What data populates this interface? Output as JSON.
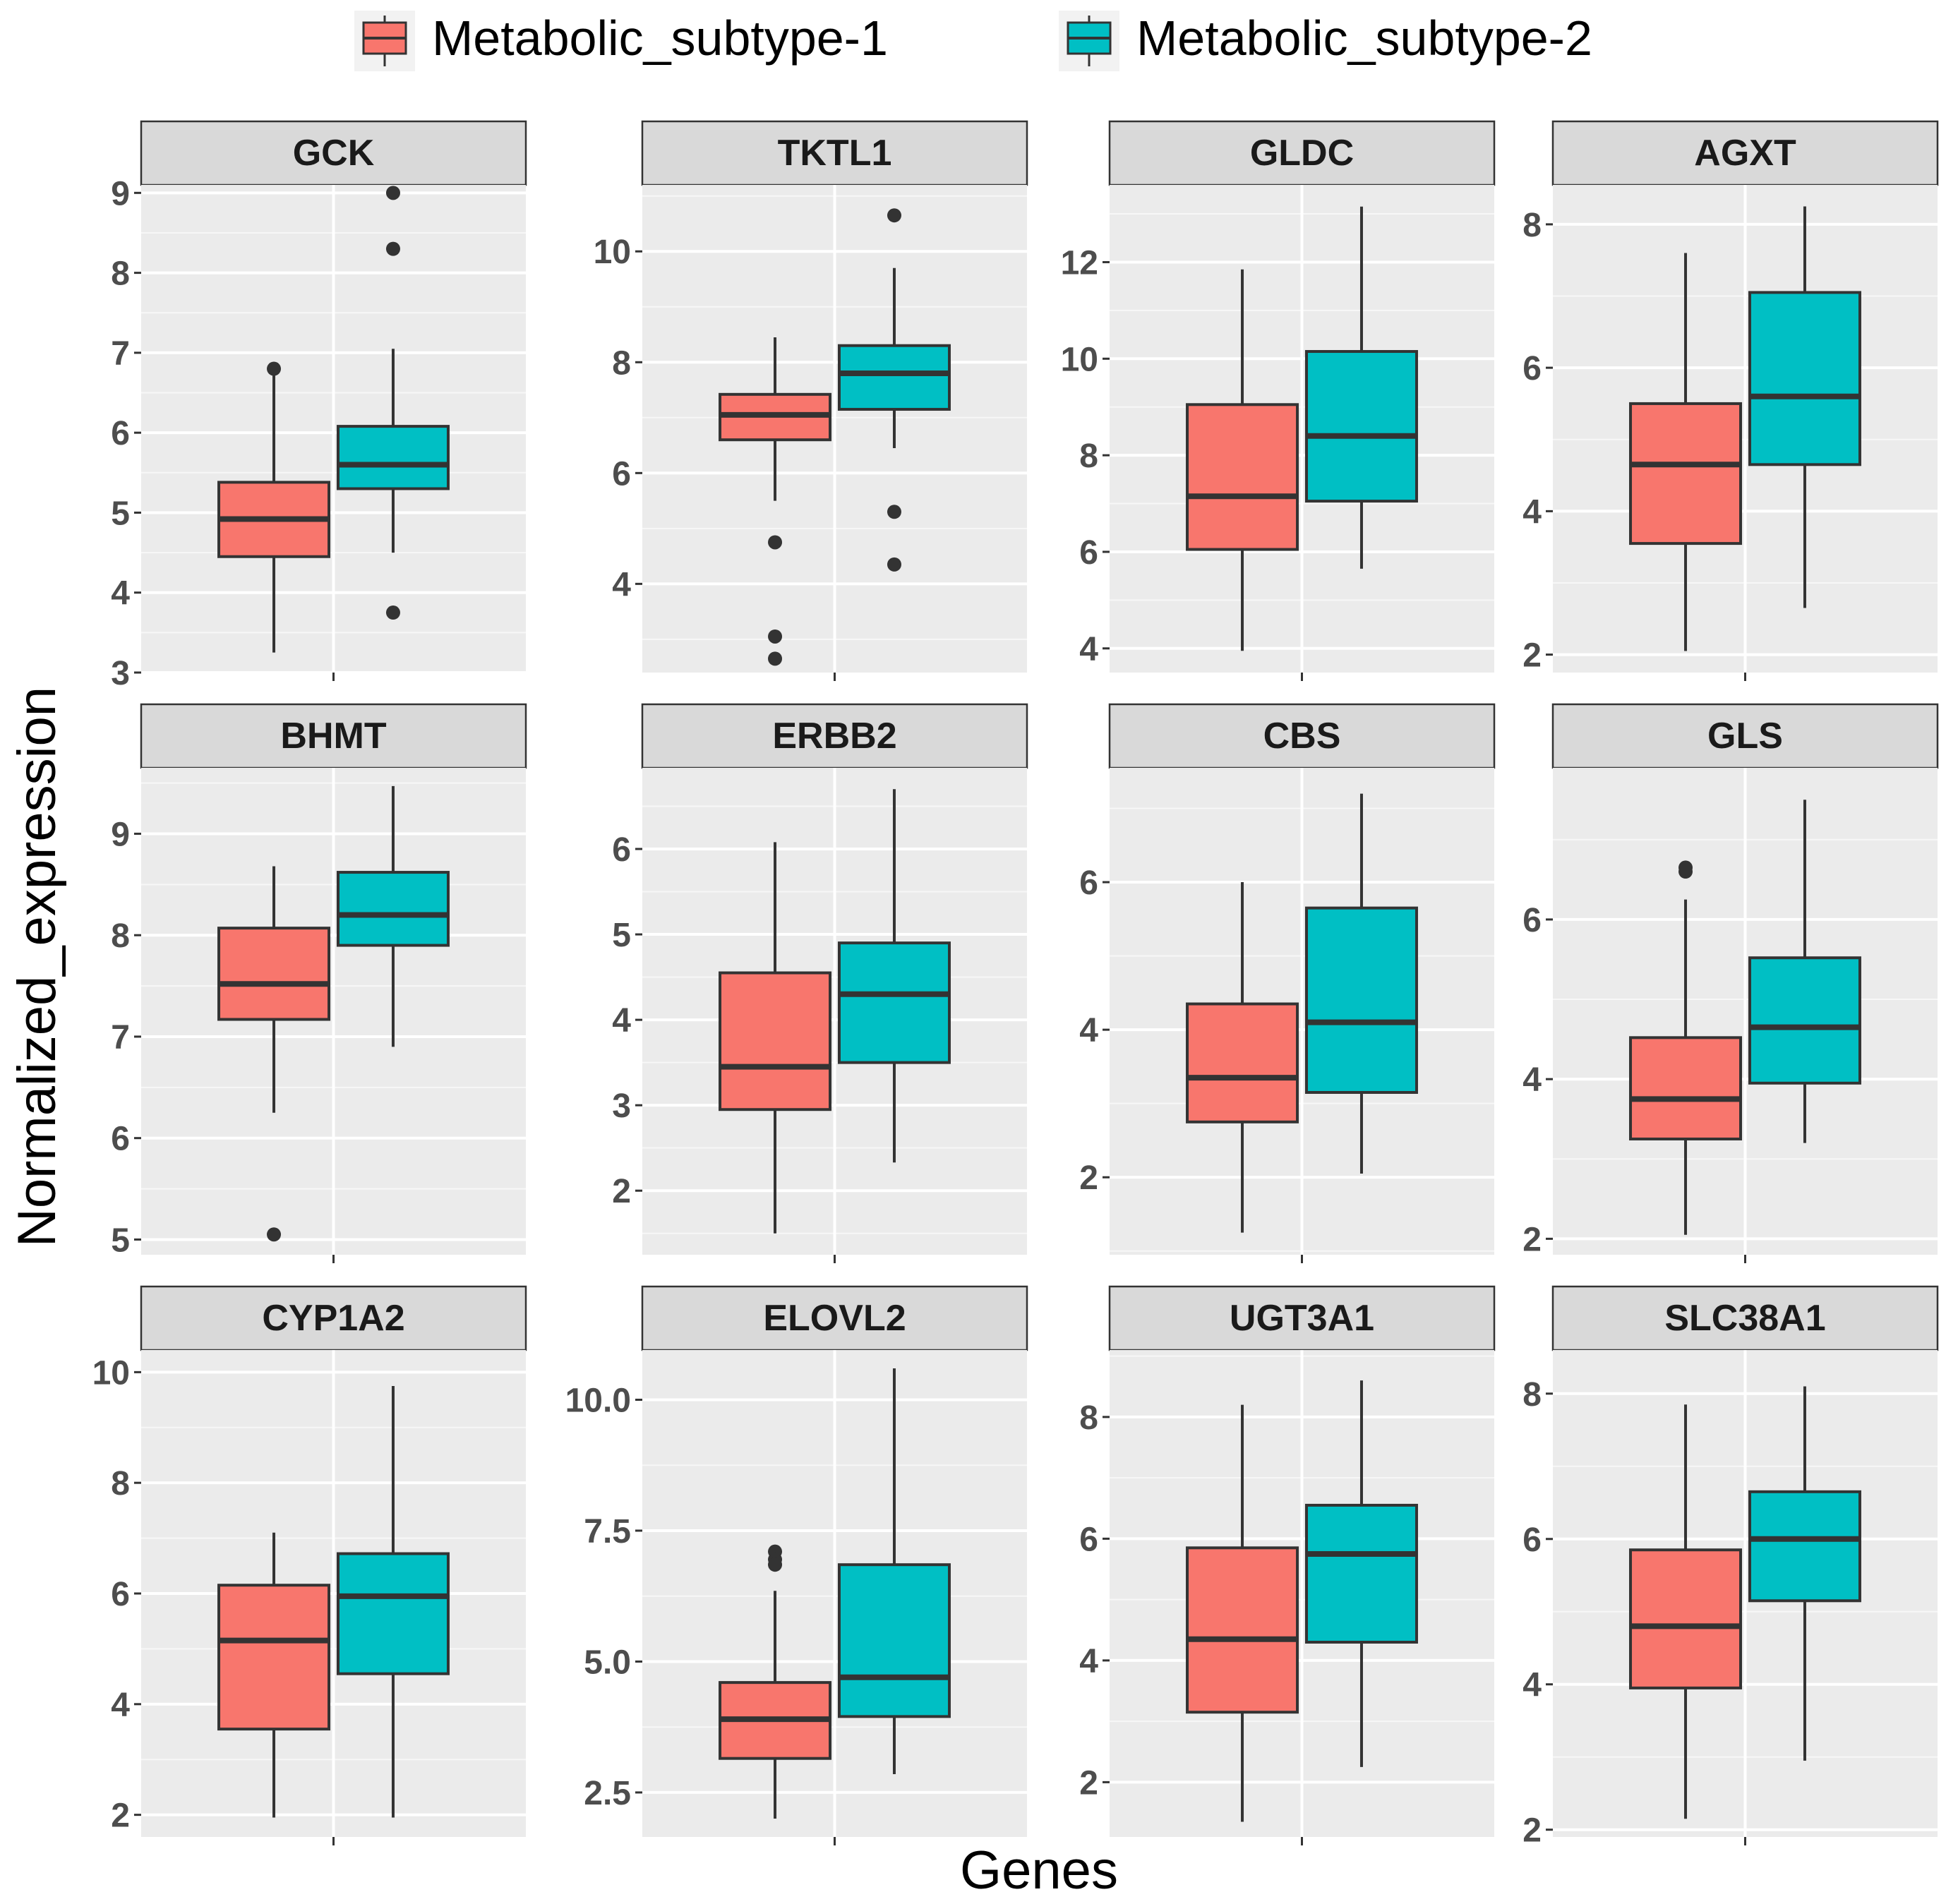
{
  "chart_data": {
    "type": "box",
    "xlabel": "Genes",
    "ylabel": "Normalized_expression",
    "legend": {
      "position": "top",
      "entries": [
        {
          "name": "Metabolic_subtype-1",
          "color": "#F8766D"
        },
        {
          "name": "Metabolic_subtype-2",
          "color": "#00BFC4"
        }
      ]
    },
    "facets": [
      {
        "gene": "GCK",
        "ylim": [
          3,
          9.1
        ],
        "ticks": [
          3,
          4,
          5,
          6,
          7,
          8,
          9
        ],
        "tick_labels": [
          "3",
          "4",
          "5",
          "6",
          "7",
          "8",
          "9"
        ],
        "groups": [
          {
            "q1": 4.45,
            "median": 4.92,
            "q3": 5.38,
            "wlo": 3.25,
            "whi": 6.75,
            "outliers": [
              6.8
            ]
          },
          {
            "q1": 5.3,
            "median": 5.6,
            "q3": 6.08,
            "wlo": 4.5,
            "whi": 7.05,
            "outliers": [
              9.0,
              8.3,
              3.75
            ]
          }
        ]
      },
      {
        "gene": "TKTL1",
        "ylim": [
          2.4,
          11.2
        ],
        "ticks": [
          4,
          6,
          8,
          10
        ],
        "tick_labels": [
          "4",
          "6",
          "8",
          "10"
        ],
        "groups": [
          {
            "q1": 6.6,
            "median": 7.05,
            "q3": 7.42,
            "wlo": 5.5,
            "whi": 8.45,
            "outliers": [
              4.75,
              3.05,
              2.65
            ]
          },
          {
            "q1": 7.15,
            "median": 7.8,
            "q3": 8.3,
            "wlo": 6.45,
            "whi": 9.7,
            "outliers": [
              10.65,
              5.3,
              4.35
            ]
          }
        ]
      },
      {
        "gene": "GLDC",
        "ylim": [
          3.5,
          13.6
        ],
        "ticks": [
          4,
          6,
          8,
          10,
          12
        ],
        "tick_labels": [
          "4",
          "6",
          "8",
          "10",
          "12"
        ],
        "groups": [
          {
            "q1": 6.05,
            "median": 7.15,
            "q3": 9.05,
            "wlo": 3.95,
            "whi": 11.85,
            "outliers": []
          },
          {
            "q1": 7.05,
            "median": 8.4,
            "q3": 10.15,
            "wlo": 5.65,
            "whi": 13.15,
            "outliers": []
          }
        ]
      },
      {
        "gene": "AGXT",
        "ylim": [
          1.75,
          8.55
        ],
        "ticks": [
          2,
          4,
          6,
          8
        ],
        "tick_labels": [
          "2",
          "4",
          "6",
          "8"
        ],
        "groups": [
          {
            "q1": 3.55,
            "median": 4.65,
            "q3": 5.5,
            "wlo": 2.05,
            "whi": 7.6,
            "outliers": []
          },
          {
            "q1": 4.65,
            "median": 5.6,
            "q3": 7.05,
            "wlo": 2.65,
            "whi": 8.25,
            "outliers": []
          }
        ]
      },
      {
        "gene": "BHMT",
        "ylim": [
          4.85,
          9.65
        ],
        "ticks": [
          5,
          6,
          7,
          8,
          9
        ],
        "tick_labels": [
          "5",
          "6",
          "7",
          "8",
          "9"
        ],
        "groups": [
          {
            "q1": 7.17,
            "median": 7.52,
            "q3": 8.07,
            "wlo": 6.25,
            "whi": 8.68,
            "outliers": [
              5.05
            ]
          },
          {
            "q1": 7.9,
            "median": 8.2,
            "q3": 8.62,
            "wlo": 6.9,
            "whi": 9.47,
            "outliers": []
          }
        ]
      },
      {
        "gene": "ERBB2",
        "ylim": [
          1.25,
          6.95
        ],
        "ticks": [
          2,
          3,
          4,
          5,
          6
        ],
        "tick_labels": [
          "2",
          "3",
          "4",
          "5",
          "6"
        ],
        "groups": [
          {
            "q1": 2.95,
            "median": 3.45,
            "q3": 4.55,
            "wlo": 1.5,
            "whi": 6.08,
            "outliers": []
          },
          {
            "q1": 3.5,
            "median": 4.3,
            "q3": 4.9,
            "wlo": 2.33,
            "whi": 6.7,
            "outliers": []
          }
        ]
      },
      {
        "gene": "CBS",
        "ylim": [
          0.95,
          7.55
        ],
        "ticks": [
          2,
          4,
          6
        ],
        "tick_labels": [
          "2",
          "4",
          "6"
        ],
        "groups": [
          {
            "q1": 2.75,
            "median": 3.35,
            "q3": 4.35,
            "wlo": 1.25,
            "whi": 6.0,
            "outliers": []
          },
          {
            "q1": 3.15,
            "median": 4.1,
            "q3": 5.65,
            "wlo": 2.05,
            "whi": 7.2,
            "outliers": []
          }
        ]
      },
      {
        "gene": "GLS",
        "ylim": [
          1.8,
          7.9
        ],
        "ticks": [
          2,
          4,
          6
        ],
        "tick_labels": [
          "2",
          "4",
          "6"
        ],
        "groups": [
          {
            "q1": 3.25,
            "median": 3.75,
            "q3": 4.52,
            "wlo": 2.05,
            "whi": 6.25,
            "outliers": [
              6.6,
              6.65
            ]
          },
          {
            "q1": 3.95,
            "median": 4.65,
            "q3": 5.52,
            "wlo": 3.2,
            "whi": 7.5,
            "outliers": []
          }
        ]
      },
      {
        "gene": "CYP1A2",
        "ylim": [
          1.6,
          10.4
        ],
        "ticks": [
          2,
          4,
          6,
          8,
          10
        ],
        "tick_labels": [
          "2",
          "4",
          "6",
          "8",
          "10"
        ],
        "groups": [
          {
            "q1": 3.55,
            "median": 5.15,
            "q3": 6.15,
            "wlo": 1.95,
            "whi": 7.1,
            "outliers": []
          },
          {
            "q1": 4.55,
            "median": 5.95,
            "q3": 6.72,
            "wlo": 1.95,
            "whi": 9.75,
            "outliers": []
          }
        ]
      },
      {
        "gene": "ELOVL2",
        "ylim": [
          1.65,
          10.95
        ],
        "ticks": [
          2.5,
          5.0,
          7.5,
          10.0
        ],
        "tick_labels": [
          "2.5",
          "5.0",
          "7.5",
          "10.0"
        ],
        "groups": [
          {
            "q1": 3.15,
            "median": 3.9,
            "q3": 4.6,
            "wlo": 2.0,
            "whi": 6.35,
            "outliers": [
              7.1,
              6.95,
              6.85
            ]
          },
          {
            "q1": 3.95,
            "median": 4.7,
            "q3": 6.85,
            "wlo": 2.85,
            "whi": 10.6,
            "outliers": []
          }
        ]
      },
      {
        "gene": "UGT3A1",
        "ylim": [
          1.1,
          9.1
        ],
        "ticks": [
          2,
          4,
          6,
          8
        ],
        "tick_labels": [
          "2",
          "4",
          "6",
          "8"
        ],
        "groups": [
          {
            "q1": 3.15,
            "median": 4.35,
            "q3": 5.85,
            "wlo": 1.35,
            "whi": 8.2,
            "outliers": []
          },
          {
            "q1": 4.3,
            "median": 5.75,
            "q3": 6.55,
            "wlo": 2.25,
            "whi": 8.6,
            "outliers": []
          }
        ]
      },
      {
        "gene": "SLC38A1",
        "ylim": [
          1.9,
          8.6
        ],
        "ticks": [
          2,
          4,
          6,
          8
        ],
        "tick_labels": [
          "2",
          "4",
          "6",
          "8"
        ],
        "groups": [
          {
            "q1": 3.95,
            "median": 4.8,
            "q3": 5.85,
            "wlo": 2.15,
            "whi": 7.85,
            "outliers": []
          },
          {
            "q1": 5.15,
            "median": 6.0,
            "q3": 6.65,
            "wlo": 2.95,
            "whi": 8.1,
            "outliers": []
          }
        ]
      }
    ]
  }
}
